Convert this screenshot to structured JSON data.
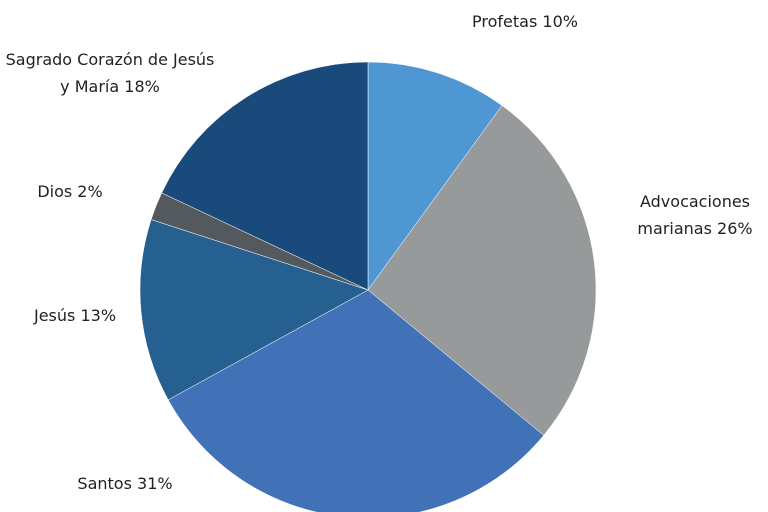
{
  "chart_data": {
    "type": "pie",
    "categories": [
      "Profetas",
      "Advocaciones marianas",
      "Santos",
      "Jesús",
      "Dios",
      "Sagrado Corazón de Jesús y María"
    ],
    "values": [
      10,
      26,
      31,
      13,
      2,
      18
    ],
    "value_labels": [
      "10%",
      "26%",
      "31%",
      "13%",
      "2%",
      "18%"
    ],
    "colors": [
      "#4f97d3",
      "#969a9b",
      "#4171b7",
      "#266091",
      "#54595e",
      "#1a4a7c"
    ]
  }
}
